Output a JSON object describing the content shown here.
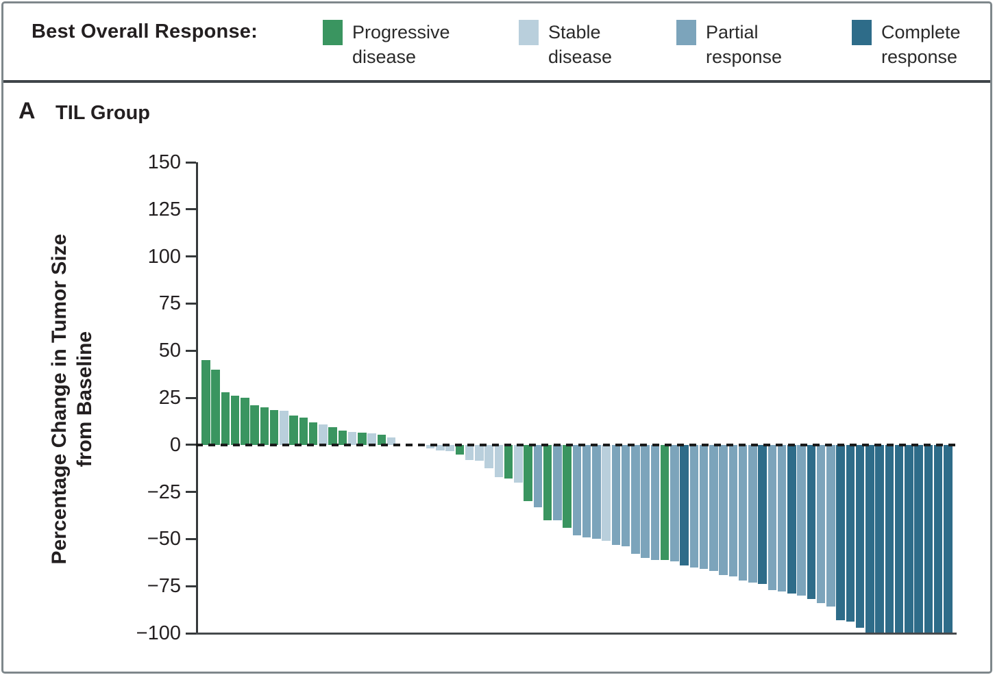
{
  "legend": {
    "title": "Best Overall Response:",
    "items": [
      {
        "code": "PD",
        "label_line1": "Progressive",
        "label_line2": "disease",
        "color": "#3a9560"
      },
      {
        "code": "SD",
        "label_line1": "Stable",
        "label_line2": "disease",
        "color": "#b9cfdc"
      },
      {
        "code": "PR",
        "label_line1": "Partial",
        "label_line2": "response",
        "color": "#7ca4bb"
      },
      {
        "code": "CR",
        "label_line1": "Complete",
        "label_line2": "response",
        "color": "#2e6c89"
      }
    ]
  },
  "panel": {
    "letter": "A",
    "title": "TIL Group"
  },
  "chart_data": {
    "type": "bar",
    "subtype": "waterfall",
    "title": "TIL Group",
    "xlabel": "",
    "ylabel_line1": "Percentage Change in Tumor Size",
    "ylabel_line2": "from Baseline",
    "ylim": [
      -100,
      150
    ],
    "yticks": [
      150,
      125,
      100,
      75,
      50,
      25,
      0,
      -25,
      -50,
      -75,
      -100
    ],
    "grid": false,
    "zero_line_style": "dashed",
    "baseline_rule_at": -100,
    "legend_position": "top",
    "colors": {
      "PD": "#3a9560",
      "SD": "#b9cfdc",
      "PR": "#7ca4bb",
      "CR": "#2e6c89"
    },
    "response_labels": {
      "PD": "Progressive disease",
      "SD": "Stable disease",
      "PR": "Partial response",
      "CR": "Complete response"
    },
    "values": [
      45,
      40,
      28,
      26,
      25,
      21,
      20,
      18.5,
      18,
      15.5,
      14.5,
      12,
      11,
      9.5,
      7.5,
      7,
      6.5,
      6,
      5.5,
      4,
      0,
      0,
      0,
      -2,
      -3,
      -3.5,
      -5,
      -8,
      -8.5,
      -12.5,
      -17,
      -18,
      -20,
      -30,
      -33,
      -40,
      -40,
      -44,
      -48,
      -49,
      -50,
      -51,
      -53,
      -54,
      -58,
      -60,
      -61,
      -61,
      -62,
      -64,
      -65,
      -66,
      -67,
      -69,
      -70,
      -72,
      -73,
      -74,
      -77,
      -78,
      -79,
      -80,
      -82,
      -84,
      -86,
      -93,
      -94,
      -97,
      -100,
      -100,
      -100,
      -100,
      -100,
      -100,
      -100,
      -100,
      -100
    ],
    "responses": [
      "PD",
      "PD",
      "PD",
      "PD",
      "PD",
      "PD",
      "PD",
      "PD",
      "SD",
      "PD",
      "PD",
      "PD",
      "SD",
      "PD",
      "PD",
      "SD",
      "PD",
      "SD",
      "PD",
      "SD",
      "SD",
      "SD",
      "SD",
      "SD",
      "SD",
      "SD",
      "PD",
      "SD",
      "SD",
      "SD",
      "SD",
      "PD",
      "SD",
      "PD",
      "PR",
      "PD",
      "PR",
      "PD",
      "PR",
      "PR",
      "PR",
      "SD",
      "PR",
      "PR",
      "PR",
      "PR",
      "PR",
      "PD",
      "PR",
      "CR",
      "PR",
      "PR",
      "PR",
      "PR",
      "PR",
      "PR",
      "PR",
      "CR",
      "PR",
      "PR",
      "CR",
      "PR",
      "CR",
      "PR",
      "PR",
      "CR",
      "CR",
      "CR",
      "CR",
      "CR",
      "CR",
      "CR",
      "CR",
      "CR",
      "CR",
      "CR",
      "CR"
    ]
  }
}
